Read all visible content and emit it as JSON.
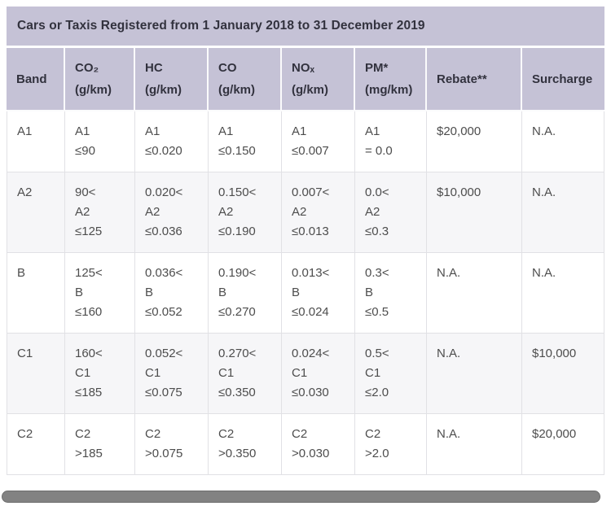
{
  "title": "Cars or Taxis Registered from 1 January 2018 to 31 December 2019",
  "colors": {
    "header_bg": "#c5c2d6",
    "header_text": "#32323e",
    "body_text": "#4d4d4d",
    "cell_border": "#e1e1e5",
    "stripe_bg": "#f6f6f8",
    "scrollbar_thumb": "#828282"
  },
  "table": {
    "columns": [
      {
        "key": "band",
        "label": "Band"
      },
      {
        "key": "co2",
        "label": "CO₂\n(g/km)"
      },
      {
        "key": "hc",
        "label": "HC\n(g/km)"
      },
      {
        "key": "co",
        "label": "CO\n(g/km)"
      },
      {
        "key": "nox",
        "label": "NOₓ\n(g/km)"
      },
      {
        "key": "pm",
        "label": "PM*\n(mg/km)"
      },
      {
        "key": "rebate",
        "label": "Rebate**"
      },
      {
        "key": "surcharge",
        "label": "Surcharge"
      }
    ],
    "rows": [
      {
        "cells": [
          "A1",
          "A1\n≤90",
          "A1\n≤0.020",
          "A1\n≤0.150",
          "A1\n≤0.007",
          "A1\n= 0.0",
          "$20,000",
          "N.A."
        ]
      },
      {
        "cells": [
          "A2",
          "90<\nA2\n≤125",
          "0.020<\nA2\n≤0.036",
          "0.150<\nA2\n≤0.190",
          "0.007<\nA2\n≤0.013",
          "0.0<\nA2\n≤0.3",
          "$10,000",
          "N.A."
        ]
      },
      {
        "cells": [
          "B",
          "125<\nB\n≤160",
          "0.036<\nB\n≤0.052",
          "0.190<\nB\n≤0.270",
          "0.013<\nB\n≤0.024",
          "0.3<\nB\n≤0.5",
          "N.A.",
          "N.A."
        ]
      },
      {
        "cells": [
          "C1",
          "160<\nC1\n≤185",
          "0.052<\nC1\n≤0.075",
          "0.270<\nC1\n≤0.350",
          "0.024<\nC1\n≤0.030",
          "0.5<\nC1\n≤2.0",
          "N.A.",
          "$10,000"
        ]
      },
      {
        "cells": [
          "C2",
          "C2\n>185",
          "C2\n>0.075",
          "C2\n>0.350",
          "C2\n>0.030",
          "C2\n>2.0",
          "N.A.",
          "$20,000"
        ]
      }
    ]
  }
}
